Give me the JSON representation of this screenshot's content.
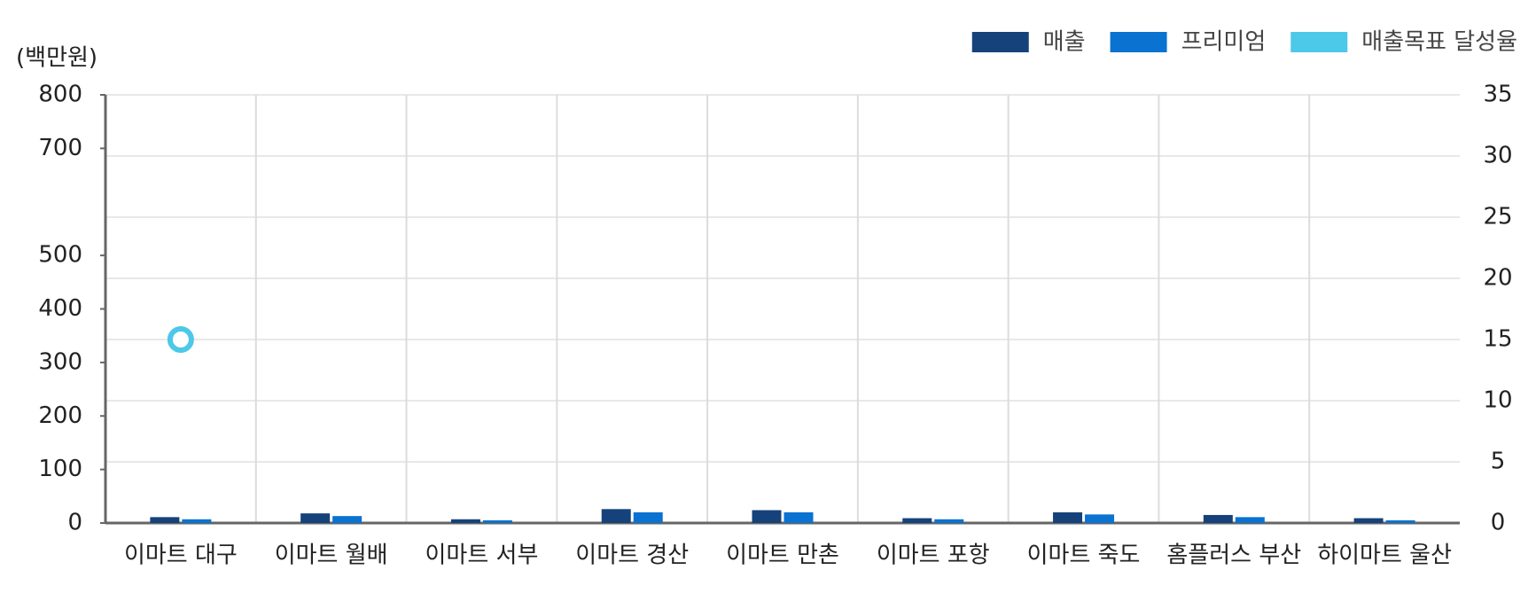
{
  "chart_data": {
    "type": "bar",
    "y_label": "(백만원)",
    "categories": [
      "이마트 대구",
      "이마트 월배",
      "이마트 서부",
      "이마트 경산",
      "이마트 만촌",
      "이마트 포항",
      "이마트 죽도",
      "홈플러스 부산",
      "하이마트 울산"
    ],
    "series": [
      {
        "name": "매출",
        "color": "#15427a",
        "type": "bar",
        "values": [
          11,
          18,
          7,
          26,
          24,
          9,
          20,
          15,
          9
        ]
      },
      {
        "name": "프리미엄",
        "color": "#0a72d1",
        "type": "bar",
        "values": [
          7,
          13,
          5,
          20,
          20,
          7,
          16,
          11,
          5
        ]
      },
      {
        "name": "매출목표 달성율",
        "color": "#4cc8e8",
        "type": "marker",
        "axis": "y2",
        "values": [
          15,
          null,
          null,
          null,
          null,
          null,
          null,
          null,
          null
        ]
      }
    ],
    "ylim": [
      0,
      800
    ],
    "yticks": [
      0,
      100,
      200,
      300,
      400,
      500,
      700,
      800
    ],
    "y2lim": [
      0,
      35
    ],
    "y2ticks": [
      0,
      5,
      10,
      15,
      20,
      25,
      30,
      35
    ],
    "grid": true,
    "legend": "top-right"
  }
}
